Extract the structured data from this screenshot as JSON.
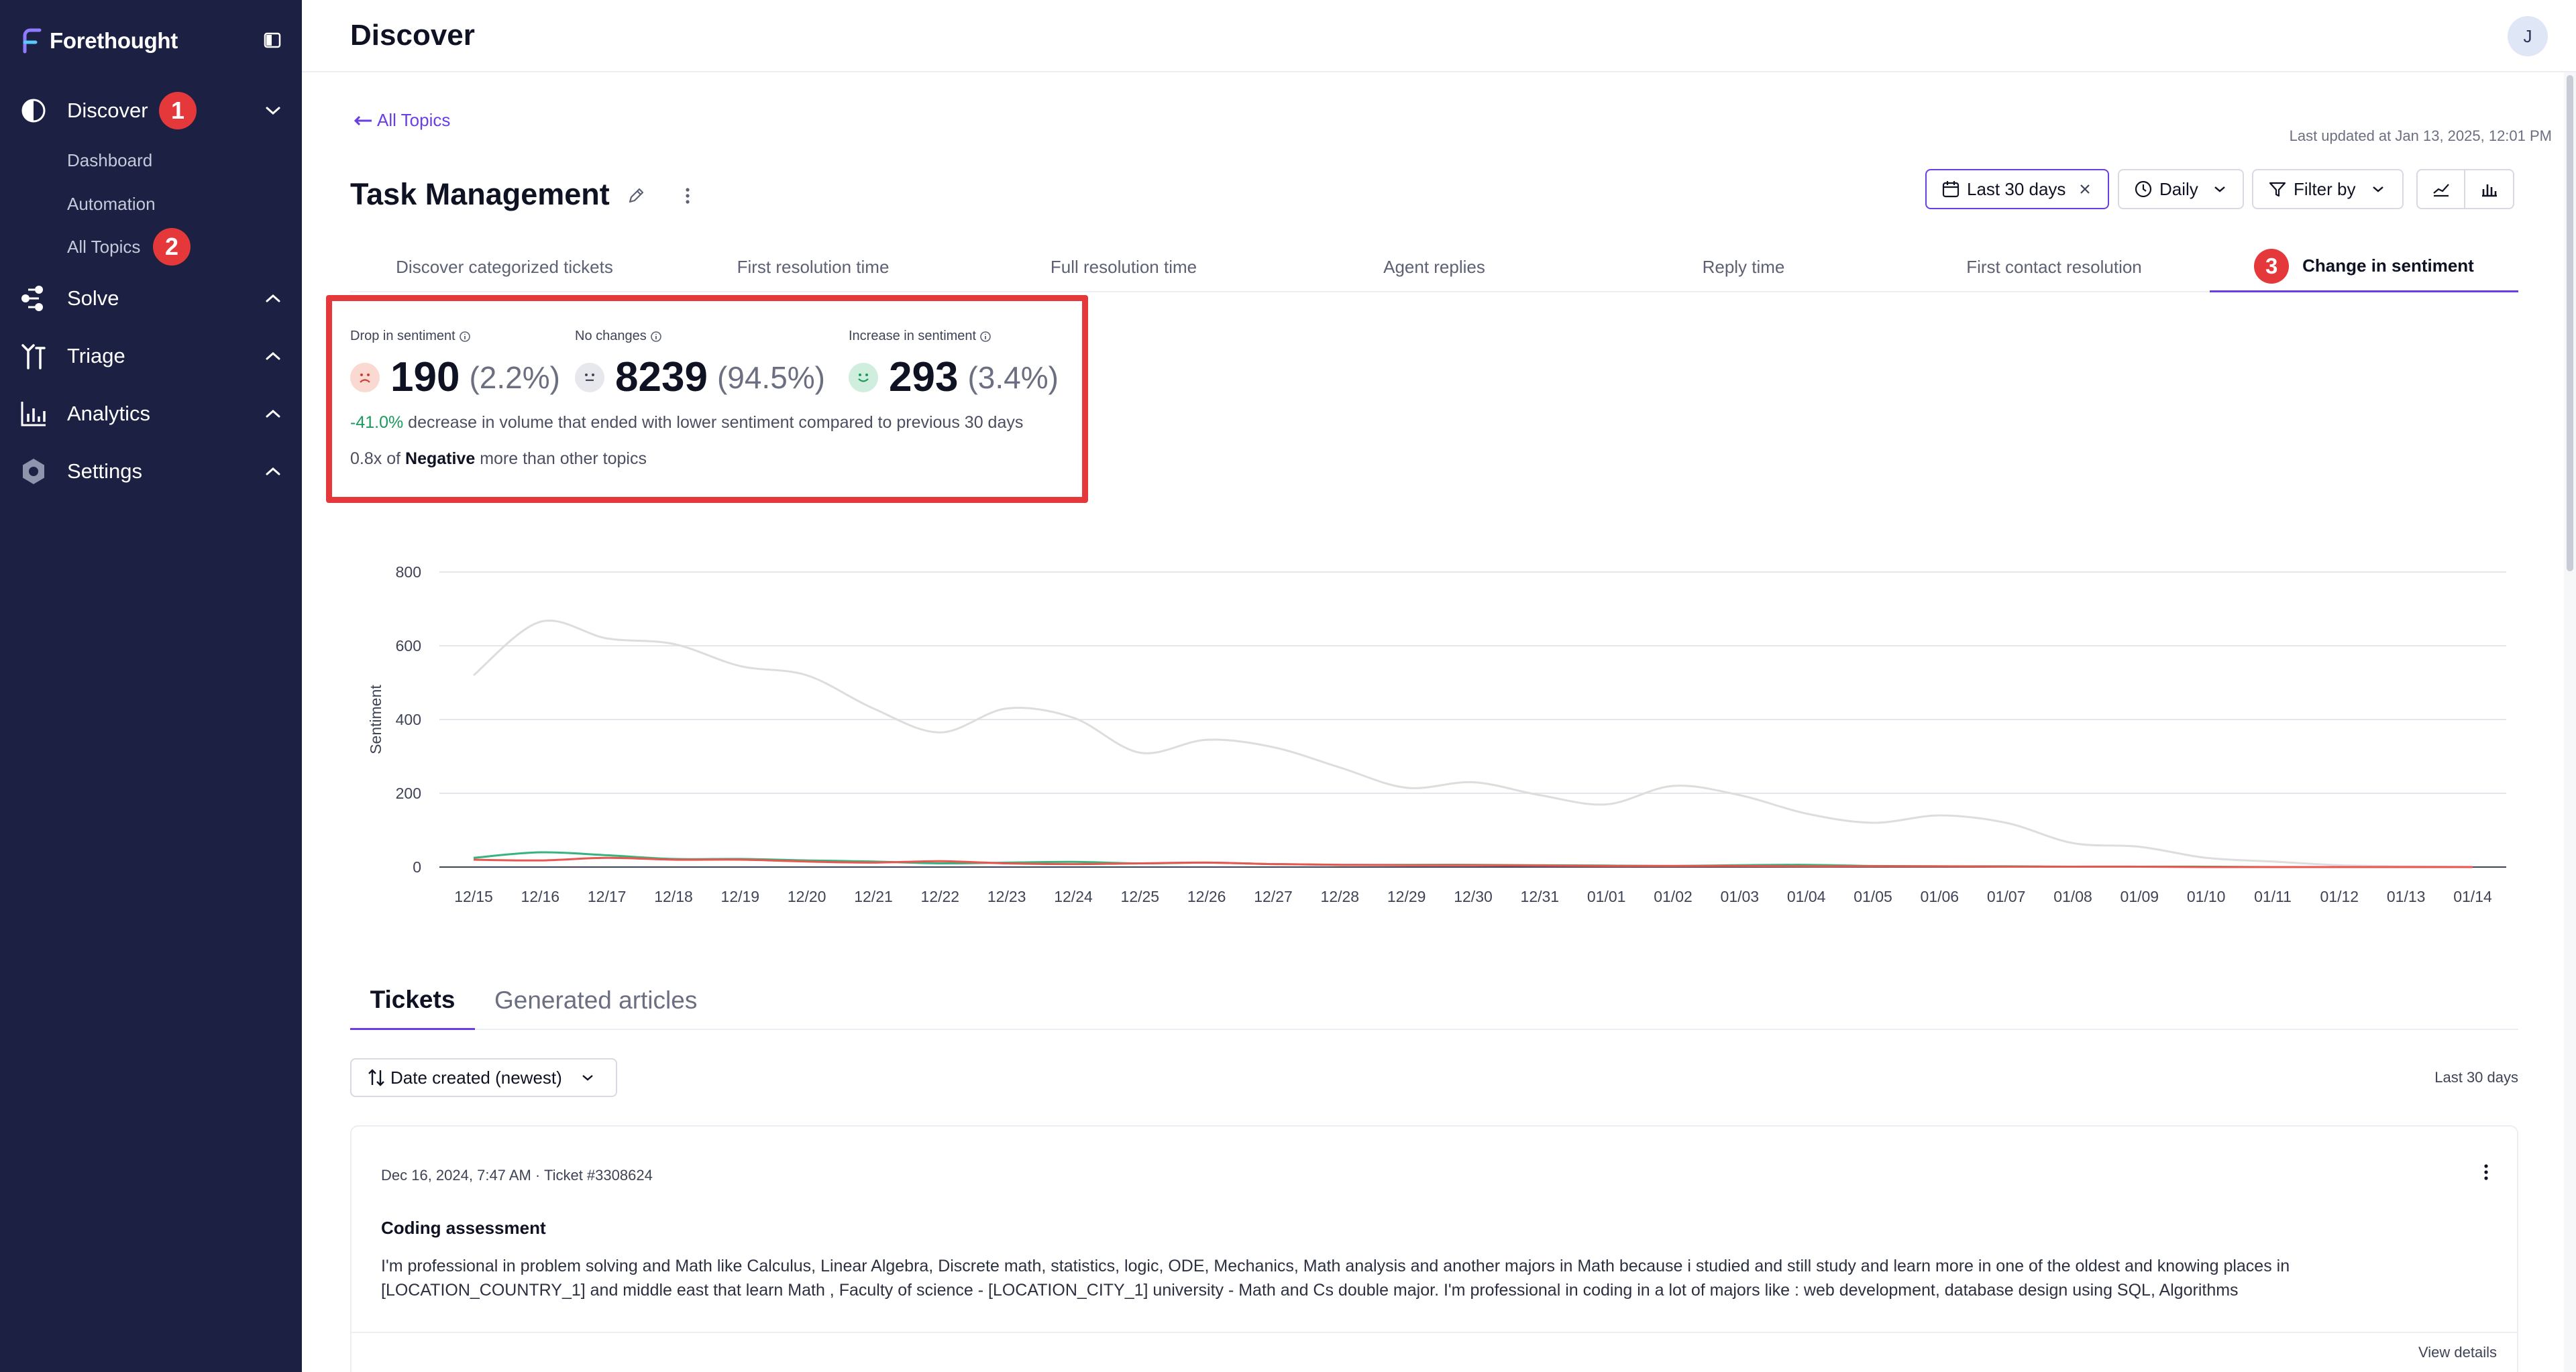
{
  "app": {
    "name": "Forethought"
  },
  "sidebar": {
    "items": [
      {
        "label": "Discover",
        "icon": "discover-icon",
        "expanded": true,
        "subitems": [
          {
            "label": "Dashboard"
          },
          {
            "label": "Automation"
          },
          {
            "label": "All Topics"
          }
        ]
      },
      {
        "label": "Solve",
        "icon": "solve-icon",
        "expanded": false
      },
      {
        "label": "Triage",
        "icon": "triage-icon",
        "expanded": false
      },
      {
        "label": "Analytics",
        "icon": "analytics-icon",
        "expanded": false
      },
      {
        "label": "Settings",
        "icon": "settings-icon",
        "expanded": false
      }
    ]
  },
  "steps": {
    "one": "1",
    "two": "2",
    "three": "3"
  },
  "header": {
    "title": "Discover",
    "avatar_initial": "J"
  },
  "page": {
    "back_link": "All Topics",
    "last_updated": "Last updated at Jan 13, 2025, 12:01 PM",
    "topic_title": "Task Management"
  },
  "controls": {
    "date_range": "Last 30 days",
    "granularity": "Daily",
    "filter": "Filter by"
  },
  "tabs": [
    "Discover categorized tickets",
    "First resolution time",
    "Full resolution time",
    "Agent replies",
    "Reply time",
    "First contact resolution",
    "Change in sentiment"
  ],
  "active_tab": "Change in sentiment",
  "metrics": {
    "drop": {
      "label": "Drop in sentiment",
      "value": "190",
      "pct": "(2.2%)"
    },
    "no_change": {
      "label": "No changes",
      "value": "8239",
      "pct": "(94.5%)"
    },
    "increase": {
      "label": "Increase in sentiment",
      "value": "293",
      "pct": "(3.4%)"
    },
    "volume_change": "-41.0%",
    "volume_text": "decrease in volume that ended with lower sentiment compared to previous 30 days",
    "negative_ratio": "0.8x",
    "negative_of": "of",
    "negative_word": "Negative",
    "negative_text": "more than other topics"
  },
  "colors": {
    "accent": "#6b3ee3",
    "badge": "#e5383b",
    "sidebar": "#1c2143",
    "total": "#dddddd",
    "increase": "#36b37e",
    "drop": "#e8564f"
  },
  "chart_data": {
    "type": "line",
    "ylabel": "Sentiment",
    "ylim": [
      0,
      800
    ],
    "yticks": [
      0,
      200,
      400,
      600,
      800
    ],
    "grid": true,
    "x": [
      "12/15",
      "12/16",
      "12/17",
      "12/18",
      "12/19",
      "12/20",
      "12/21",
      "12/22",
      "12/23",
      "12/24",
      "12/25",
      "12/26",
      "12/27",
      "12/28",
      "12/29",
      "12/30",
      "12/31",
      "01/01",
      "01/02",
      "01/03",
      "01/04",
      "01/05",
      "01/06",
      "01/07",
      "01/08",
      "01/09",
      "01/10",
      "01/11",
      "01/12",
      "01/13",
      "01/14"
    ],
    "series": [
      {
        "color": "#dddddd",
        "values": [
          520,
          665,
          620,
          605,
          545,
          520,
          430,
          365,
          430,
          405,
          310,
          345,
          325,
          270,
          215,
          230,
          195,
          170,
          220,
          195,
          145,
          120,
          140,
          120,
          65,
          55,
          25,
          15,
          5,
          2,
          0
        ]
      },
      {
        "color": "#36b37e",
        "values": [
          25,
          40,
          32,
          22,
          22,
          18,
          15,
          10,
          12,
          14,
          10,
          12,
          8,
          6,
          6,
          6,
          5,
          4,
          3,
          5,
          6,
          3,
          2,
          2,
          1,
          1,
          1,
          0,
          0,
          0,
          0
        ]
      },
      {
        "color": "#e8564f",
        "values": [
          20,
          18,
          25,
          20,
          20,
          15,
          12,
          16,
          10,
          8,
          10,
          12,
          8,
          6,
          5,
          5,
          4,
          3,
          3,
          3,
          2,
          2,
          2,
          1,
          1,
          1,
          0,
          0,
          0,
          0,
          0
        ]
      }
    ]
  },
  "bottom_tabs": [
    "Tickets",
    "Generated articles"
  ],
  "sort": {
    "label": "Date created (newest)"
  },
  "range_label": "Last 30 days",
  "ticket": {
    "meta": "Dec 16, 2024, 7:47 AM · Ticket #3308624",
    "title": "Coding assessment",
    "body": "I'm professional in problem solving and Math like Calculus, Linear Algebra, Discrete math, statistics, logic, ODE, Mechanics, Math analysis and another majors in Math because i studied and still study and learn more in one of the oldest and knowing places in [LOCATION_COUNTRY_1] and middle east that learn Math , Faculty of science - [LOCATION_CITY_1] university - Math and Cs double major. I'm professional in coding in a lot of majors like : web development, database design using SQL, Algorithms",
    "view_details": "View details"
  }
}
